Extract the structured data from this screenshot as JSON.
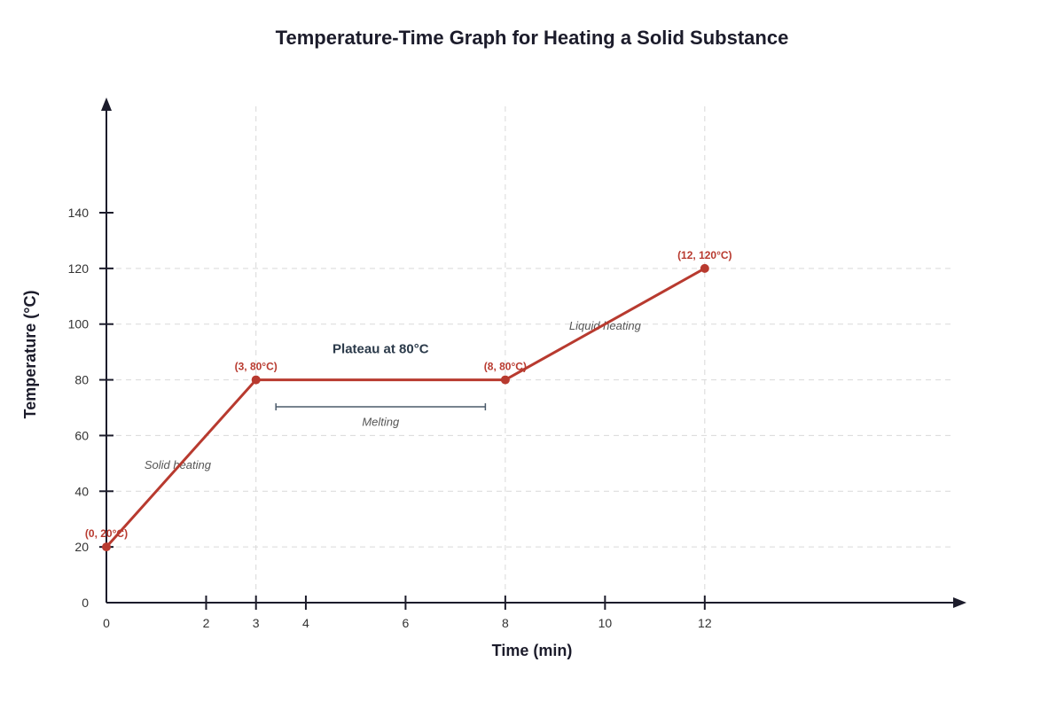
{
  "chart_data": {
    "type": "line",
    "title": "Temperature-Time Graph for Heating a Solid Substance",
    "xlabel": "Time (min)",
    "ylabel": "Temperature (°C)",
    "xlim": [
      0,
      17
    ],
    "ylim": [
      0,
      175
    ],
    "x_ticks": [
      0,
      2,
      3,
      4,
      6,
      8,
      10,
      12
    ],
    "y_ticks": [
      0,
      20,
      40,
      60,
      80,
      100,
      120,
      140
    ],
    "x_grid": [
      3,
      8,
      12
    ],
    "y_grid": [
      20,
      40,
      60,
      80,
      100,
      120
    ],
    "grid": true,
    "series": [
      {
        "x": [
          0,
          3,
          8,
          12
        ],
        "y": [
          20,
          80,
          80,
          120
        ],
        "color": "#b83a2f",
        "point_labels": [
          "(0, 20°C)",
          "(3, 80°C)",
          "(8, 80°C)",
          "(12, 120°C)"
        ]
      }
    ],
    "annotations": {
      "plateau_label": "Plateau at 80°C",
      "melting_label": "Melting",
      "solid_label": "Solid heating",
      "liquid_label": "Liquid heating"
    },
    "colors": {
      "line": "#b83a2f",
      "axis": "#1c1c2b",
      "bracket": "#4a5a6a",
      "grid": "#d9d9d9"
    }
  }
}
